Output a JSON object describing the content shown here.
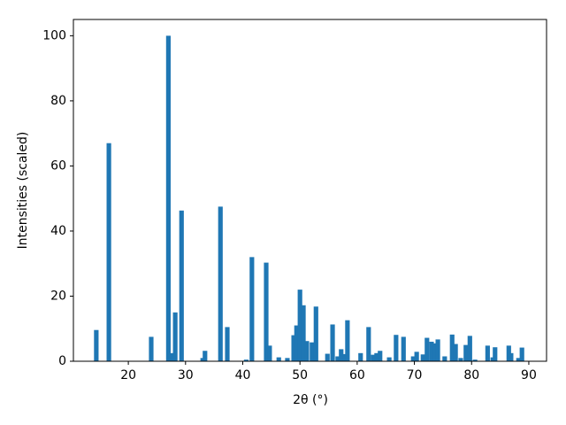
{
  "chart_data": {
    "type": "bar",
    "x_label": "2θ (°)",
    "y_label": "Intensities (scaled)",
    "color": "#1f77b4",
    "x": [
      14.4,
      16.6,
      24.0,
      27.0,
      27.6,
      28.2,
      29.3,
      33.0,
      33.4,
      36.1,
      37.3,
      40.6,
      41.6,
      44.1,
      44.7,
      46.3,
      47.8,
      48.9,
      49.4,
      50.0,
      50.6,
      51.2,
      52.1,
      52.8,
      54.8,
      55.7,
      56.6,
      57.2,
      57.9,
      58.3,
      60.6,
      62.0,
      62.8,
      63.4,
      64.0,
      65.6,
      66.8,
      68.1,
      69.8,
      70.4,
      71.5,
      72.2,
      73.0,
      73.5,
      74.1,
      75.3,
      76.6,
      77.2,
      78.1,
      79.0,
      79.7,
      80.6,
      82.8,
      83.7,
      84.1,
      86.5,
      86.9,
      88.2,
      88.8
    ],
    "values": [
      9.6,
      67,
      7.5,
      100,
      2.5,
      15,
      46.3,
      1,
      3.2,
      47.5,
      10.5,
      0.5,
      32,
      30.3,
      4.8,
      1.2,
      1,
      8,
      11,
      22,
      17.2,
      6.2,
      5.8,
      16.8,
      2.3,
      11.3,
      1.5,
      3.7,
      2.2,
      12.6,
      2.5,
      10.5,
      2,
      2.5,
      3.2,
      1.2,
      8.1,
      7.5,
      1.5,
      2.9,
      2.1,
      7.2,
      6,
      5.5,
      6.7,
      1.5,
      8.2,
      5.3,
      1,
      5,
      7.8,
      0.5,
      4.8,
      1.2,
      4.3,
      4.8,
      2.5,
      1,
      4.2
    ],
    "xlim": [
      10.4,
      93.1
    ],
    "ylim": [
      0,
      105
    ],
    "xticks": [
      20,
      30,
      40,
      50,
      60,
      70,
      80,
      90
    ],
    "yticks": [
      0,
      20,
      40,
      60,
      80,
      100
    ]
  }
}
